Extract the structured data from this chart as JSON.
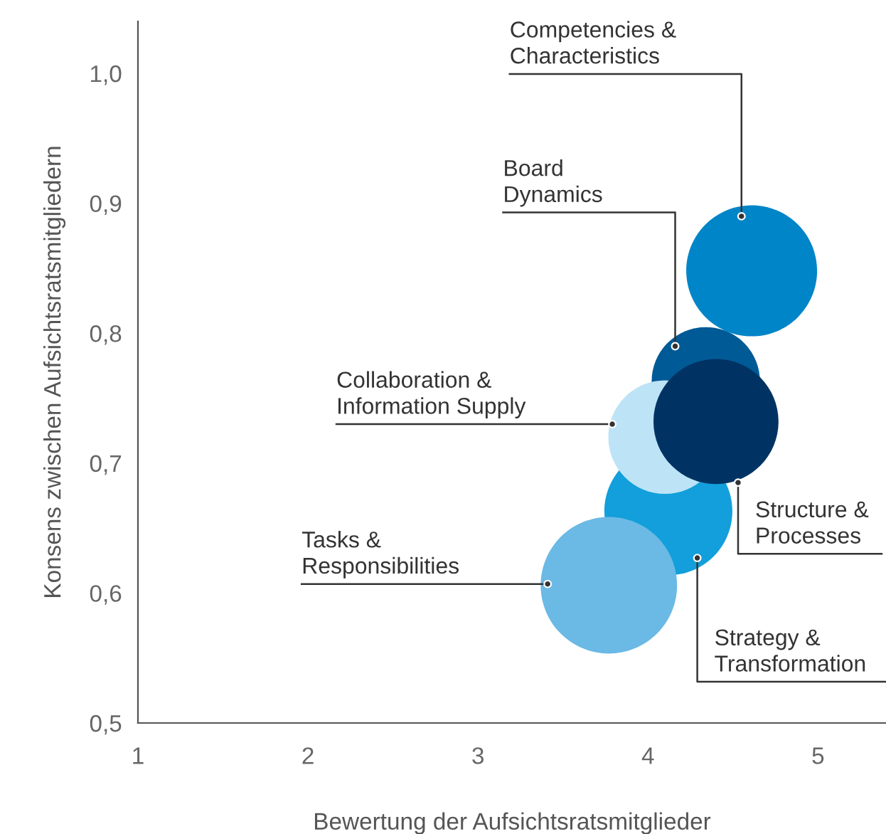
{
  "chart_data": {
    "type": "bubble",
    "xlabel": "Bewertung der Aufsichtsratsmitglieder",
    "ylabel": "Konsens zwischen Aufsichtsratsmitgliedern",
    "xlim": [
      1,
      5.4
    ],
    "ylim": [
      0.5,
      1.04
    ],
    "xticks": [
      1,
      2,
      3,
      4,
      5
    ],
    "yticks": [
      {
        "value": 0.5,
        "label": "0,5"
      },
      {
        "value": 0.6,
        "label": "0,6"
      },
      {
        "value": 0.7,
        "label": "0,7"
      },
      {
        "value": 0.8,
        "label": "0,8"
      },
      {
        "value": 0.9,
        "label": "0,9"
      },
      {
        "value": 1.0,
        "label": "1,0"
      }
    ],
    "x": [
      4.34,
      4.12,
      4.1,
      4.4,
      3.77,
      4.61
    ],
    "values": [
      0.763,
      0.663,
      0.72,
      0.732,
      0.606,
      0.848
    ],
    "sizes": [
      0.63,
      0.88,
      0.69,
      0.84,
      1,
      0.92
    ],
    "colors": [
      "#005a96",
      "#129fdb",
      "#bde3f7",
      "#003363",
      "#6bb9e5",
      "#0085c8"
    ],
    "grid": false,
    "legend": false,
    "annotations": [
      {
        "text": "Competencies &\nCharacteristics",
        "x": 4.55,
        "y": 0.89
      },
      {
        "text": "Board\nDynamics",
        "x": 4.16,
        "y": 0.79
      },
      {
        "text": "Collaboration &\nInformation Supply",
        "x": 3.79,
        "y": 0.73
      },
      {
        "text": "Structure &\nProcesses",
        "x": 4.53,
        "y": 0.685
      },
      {
        "text": "Strategy &\nTransformation",
        "x": 4.29,
        "y": 0.627
      },
      {
        "text": "Tasks &\nResponsibilities",
        "x": 3.41,
        "y": 0.607
      }
    ]
  }
}
